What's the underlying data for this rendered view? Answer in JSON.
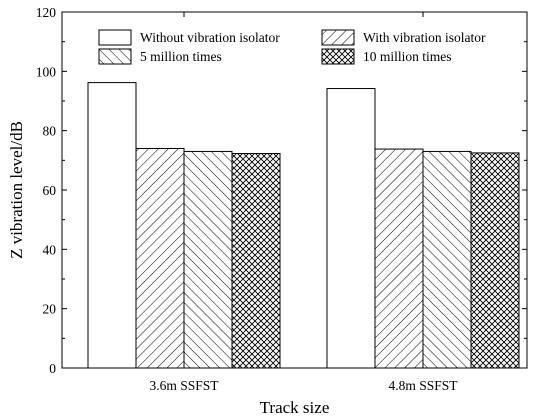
{
  "chart_data": {
    "type": "bar",
    "xlabel": "Track size",
    "ylabel": "Z vibration level/dB",
    "ylim": [
      0,
      120
    ],
    "yticks": [
      0,
      20,
      40,
      60,
      80,
      100,
      120
    ],
    "categories": [
      "3.6m SSFST",
      "4.8m SSFST"
    ],
    "series": [
      {
        "name": "Without vibration isolator",
        "values": [
          96.2,
          94.2
        ],
        "pattern": "none"
      },
      {
        "name": "With vibration isolator",
        "values": [
          74.0,
          73.8
        ],
        "pattern": "diag-up"
      },
      {
        "name": "5 million times",
        "values": [
          73.0,
          73.0
        ],
        "pattern": "diag-down"
      },
      {
        "name": "10 million times",
        "values": [
          72.3,
          72.5
        ],
        "pattern": "crosshatch"
      }
    ],
    "grid": false,
    "legend_position": "top"
  }
}
